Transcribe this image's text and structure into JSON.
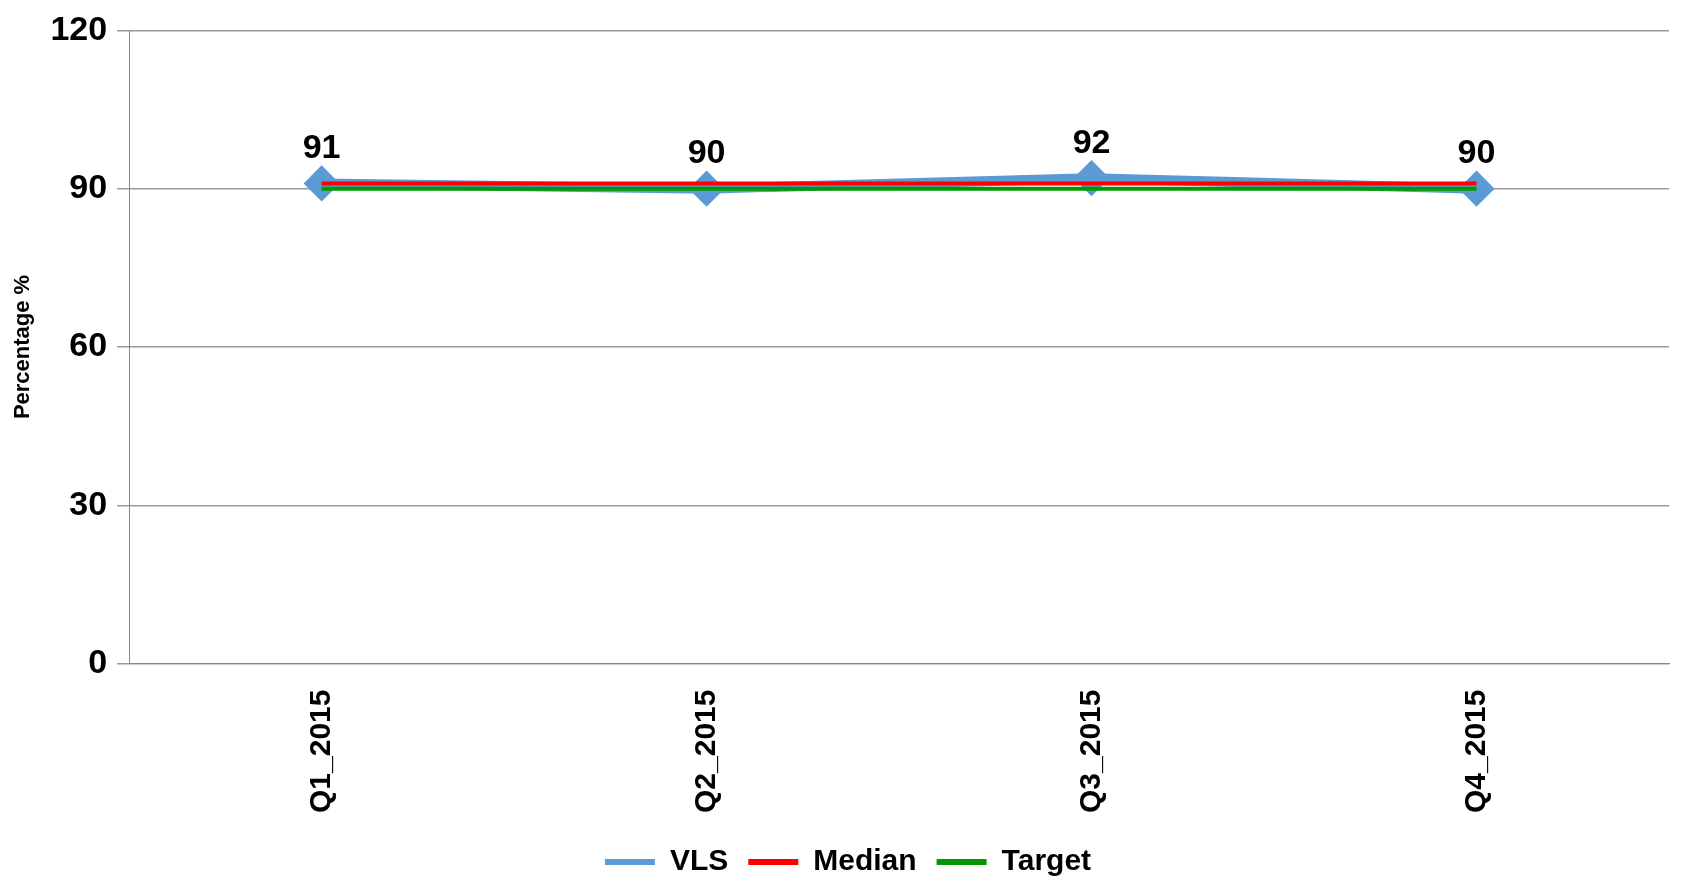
{
  "chart_data": {
    "type": "line",
    "ylabel": "Percentage %",
    "categories": [
      "Q1_2015",
      "Q2_2015",
      "Q3_2015",
      "Q4_2015"
    ],
    "series": [
      {
        "name": "VLS",
        "color": "#5b9bd5",
        "values": [
          91,
          90,
          92,
          90
        ],
        "value_labels": [
          "91",
          "90",
          "92",
          "90"
        ],
        "marker": "diamond"
      },
      {
        "name": "Median",
        "color": "#ff0000",
        "values": [
          91,
          91,
          91,
          91
        ],
        "marker": "none"
      },
      {
        "name": "Target",
        "color": "#009900",
        "values": [
          90,
          90,
          90,
          90
        ],
        "marker": "none"
      }
    ],
    "ylim": [
      0,
      120
    ],
    "yticks": [
      0,
      30,
      60,
      90,
      120
    ],
    "grid": "y",
    "legend": "bottom",
    "line_style": "solid"
  }
}
